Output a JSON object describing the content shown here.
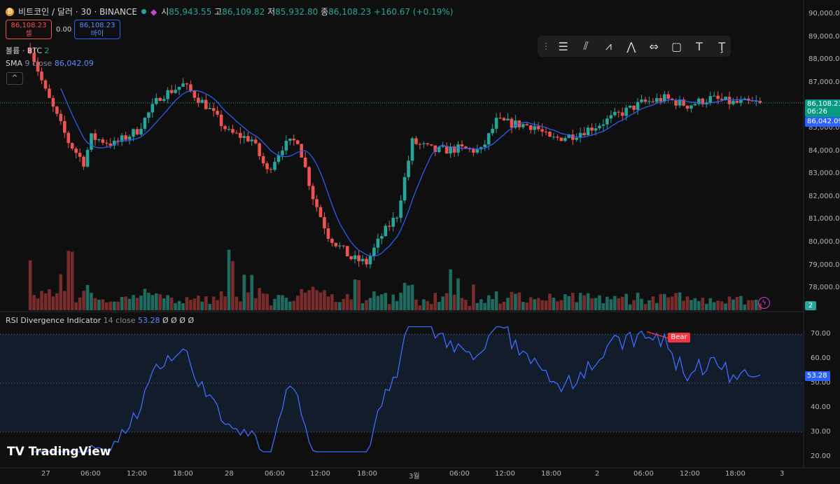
{
  "header": {
    "coin_glyph": "₿",
    "symbol": "비트코인 / 달러 · 30 · BINANCE",
    "ohlc": {
      "open_label": "시",
      "open": "85,943.55",
      "high_label": "고",
      "high": "86,109.82",
      "low_label": "저",
      "low": "85,932.80",
      "close_label": "종",
      "close": "86,108.23",
      "change": "+160.67 (+0.19%)"
    }
  },
  "sell_box": {
    "price": "86,108.23",
    "label": "셀"
  },
  "spread": "0.00",
  "buy_box": {
    "price": "86,108.23",
    "label": "바이"
  },
  "volume_legend": {
    "name": "볼륨 · BTC",
    "value": "2"
  },
  "sma_legend": {
    "name": "SMA",
    "params": "9 close",
    "value": "86,042.09"
  },
  "collapse_glyph": "^",
  "rsi_legend": {
    "name": "RSI Divergence Indicator",
    "params": "14 close",
    "value": "53.28",
    "extra": "Ø Ø Ø Ø"
  },
  "price_axis": [
    "90,000.00",
    "89,000.00",
    "88,000.00",
    "87,000.00",
    "86,000.00",
    "85,000.00",
    "84,000.00",
    "83,000.00",
    "82,000.00",
    "81,000.00",
    "80,000.00",
    "79,000.00",
    "78,000.00"
  ],
  "rsi_axis": [
    "70.00",
    "60.00",
    "50.00",
    "40.00",
    "30.00",
    "20.00"
  ],
  "time_axis": [
    "27",
    "06:00",
    "12:00",
    "18:00",
    "28",
    "06:00",
    "12:00",
    "18:00",
    "3월",
    "06:00",
    "12:00",
    "18:00",
    "2",
    "06:00",
    "12:00",
    "18:00",
    "3"
  ],
  "current_price_tag": {
    "price": "86,108.23",
    "countdown": "06:26"
  },
  "sma_tag": "86,042.09",
  "volume_tag": "2",
  "rsi_tag": "53.28",
  "bear_label": "Bear",
  "logo_text": "TradingView",
  "colors": {
    "up": "#26a69a",
    "down": "#ef5350",
    "sma": "#2962ff",
    "rsi": "#3d6bff",
    "bear": "#f23645"
  },
  "chart_data": [
    {
      "type": "candlestick",
      "title": "비트코인 / 달러 · 30 · BINANCE",
      "ylim": [
        77500,
        90000
      ],
      "x_range": [
        "27 00:00",
        "3 00:00"
      ],
      "grid": false,
      "series_approx_close": [
        {
          "t": "26 22:00",
          "close": 88500
        },
        {
          "t": "27 00:00",
          "close": 86600
        },
        {
          "t": "27 03:00",
          "close": 84400
        },
        {
          "t": "27 05:00",
          "close": 83500
        },
        {
          "t": "27 06:00",
          "close": 84600
        },
        {
          "t": "27 09:00",
          "close": 84300
        },
        {
          "t": "27 12:00",
          "close": 84900
        },
        {
          "t": "27 15:00",
          "close": 86400
        },
        {
          "t": "27 18:00",
          "close": 86900
        },
        {
          "t": "27 21:00",
          "close": 86000
        },
        {
          "t": "28 00:00",
          "close": 84800
        },
        {
          "t": "28 03:00",
          "close": 84500
        },
        {
          "t": "28 05:00",
          "close": 83100
        },
        {
          "t": "28 07:00",
          "close": 84200
        },
        {
          "t": "28 09:00",
          "close": 84500
        },
        {
          "t": "28 11:00",
          "close": 82000
        },
        {
          "t": "28 13:00",
          "close": 80300
        },
        {
          "t": "28 16:00",
          "close": 79300
        },
        {
          "t": "28 18:00",
          "close": 79100
        },
        {
          "t": "28 20:00",
          "close": 80300
        },
        {
          "t": "28 22:00",
          "close": 81200
        },
        {
          "t": "1 00:00",
          "close": 84400
        },
        {
          "t": "1 03:00",
          "close": 84000
        },
        {
          "t": "1 06:00",
          "close": 84100
        },
        {
          "t": "1 09:00",
          "close": 84000
        },
        {
          "t": "1 11:00",
          "close": 85300
        },
        {
          "t": "1 13:00",
          "close": 85200
        },
        {
          "t": "1 16:00",
          "close": 85100
        },
        {
          "t": "1 18:00",
          "close": 84500
        },
        {
          "t": "1 21:00",
          "close": 84700
        },
        {
          "t": "2 00:00",
          "close": 85100
        },
        {
          "t": "2 03:00",
          "close": 85600
        },
        {
          "t": "2 06:00",
          "close": 86100
        },
        {
          "t": "2 09:00",
          "close": 86300
        },
        {
          "t": "2 12:00",
          "close": 86000
        },
        {
          "t": "2 15:00",
          "close": 86300
        },
        {
          "t": "2 18:00",
          "close": 86100
        },
        {
          "t": "2 21:00",
          "close": 86108
        }
      ],
      "current_price": 86108.23,
      "sma": {
        "name": "SMA 9 close",
        "last": 86042.09
      }
    },
    {
      "type": "line",
      "title": "RSI Divergence Indicator",
      "ylim": [
        20,
        75
      ],
      "bands": [
        30,
        50,
        70
      ],
      "last": 53.28,
      "annotation": "Bear"
    }
  ]
}
